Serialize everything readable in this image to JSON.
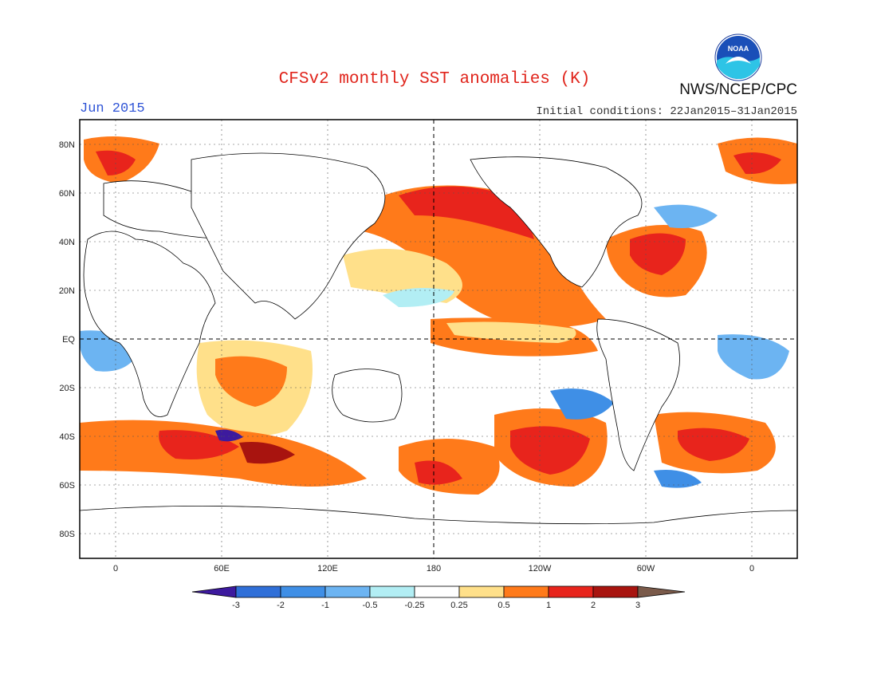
{
  "header": {
    "title": "CFSv2 monthly SST anomalies (K)",
    "month": "Jun 2015",
    "agency": "NWS/NCEP/CPC",
    "initial_conditions": "Initial conditions: 22Jan2015–31Jan2015",
    "logo_text": "NOAA"
  },
  "axes": {
    "lat_labels": [
      "80N",
      "60N",
      "40N",
      "20N",
      "EQ",
      "20S",
      "40S",
      "60S",
      "80S"
    ],
    "lon_labels": [
      "0",
      "60E",
      "120E",
      "180",
      "120W",
      "60W",
      "0"
    ]
  },
  "colorbar": {
    "labels": [
      "-3",
      "-2",
      "-1",
      "-0.5",
      "-0.25",
      "0.25",
      "0.5",
      "1",
      "2",
      "3"
    ],
    "colors": [
      "#3d1a9e",
      "#2f6fd8",
      "#3f8fe6",
      "#6cb4f2",
      "#b2eef4",
      "#ffffff",
      "#ffe08a",
      "#ff7a1a",
      "#e8241c",
      "#a8140f",
      "#7a5a4a"
    ]
  }
}
